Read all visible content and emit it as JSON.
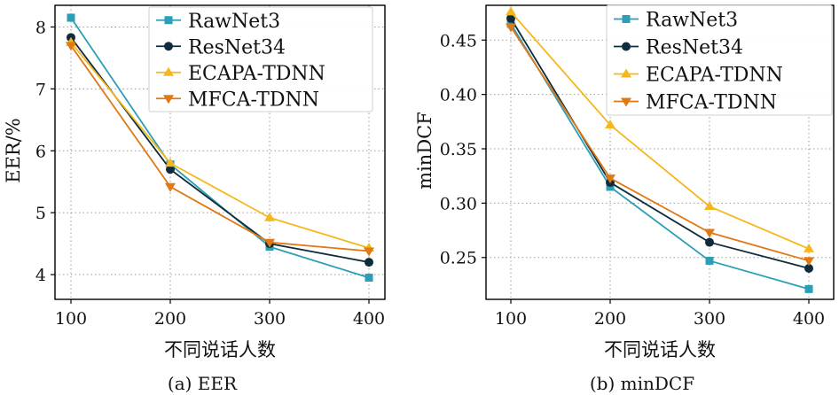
{
  "colors": {
    "RawNet3": "#2b9fb6",
    "ResNet34": "#0f2c3d",
    "ECAPA-TDNN": "#f5b81c",
    "MFCA-TDNN": "#e07814"
  },
  "chart_data": [
    {
      "type": "line",
      "caption": "(a) EER",
      "xlabel": "不同说话人数",
      "ylabel": "EER/%",
      "x": [
        100,
        200,
        300,
        400
      ],
      "xticks": [
        "100",
        "200",
        "300",
        "400"
      ],
      "yticks": [
        "4",
        "5",
        "6",
        "7",
        "8"
      ],
      "ylim": [
        3.6,
        8.35
      ],
      "grid": true,
      "legend_position": "top-right",
      "series": [
        {
          "name": "RawNet3",
          "marker": "square",
          "values": [
            8.15,
            5.78,
            4.45,
            3.95
          ]
        },
        {
          "name": "ResNet34",
          "marker": "circle",
          "values": [
            7.83,
            5.7,
            4.5,
            4.2
          ]
        },
        {
          "name": "ECAPA-TDNN",
          "marker": "triangle-up",
          "values": [
            7.75,
            5.8,
            4.92,
            4.43
          ]
        },
        {
          "name": "MFCA-TDNN",
          "marker": "triangle-down",
          "values": [
            7.7,
            5.42,
            4.52,
            4.38
          ]
        }
      ]
    },
    {
      "type": "line",
      "caption": "(b) minDCF",
      "xlabel": "不同说话人数",
      "ylabel": "minDCF",
      "x": [
        100,
        200,
        300,
        400
      ],
      "xticks": [
        "100",
        "200",
        "300",
        "400"
      ],
      "yticks": [
        "0.25",
        "0.30",
        "0.35",
        "0.40",
        "0.45"
      ],
      "ylim": [
        0.2115,
        0.482
      ],
      "grid": true,
      "legend_position": "top-right",
      "series": [
        {
          "name": "RawNet3",
          "marker": "square",
          "values": [
            0.465,
            0.315,
            0.247,
            0.221
          ]
        },
        {
          "name": "ResNet34",
          "marker": "circle",
          "values": [
            0.47,
            0.319,
            0.264,
            0.24
          ]
        },
        {
          "name": "ECAPA-TDNN",
          "marker": "triangle-up",
          "values": [
            0.476,
            0.372,
            0.297,
            0.258
          ]
        },
        {
          "name": "MFCA-TDNN",
          "marker": "triangle-down",
          "values": [
            0.462,
            0.323,
            0.273,
            0.247
          ]
        }
      ]
    }
  ]
}
